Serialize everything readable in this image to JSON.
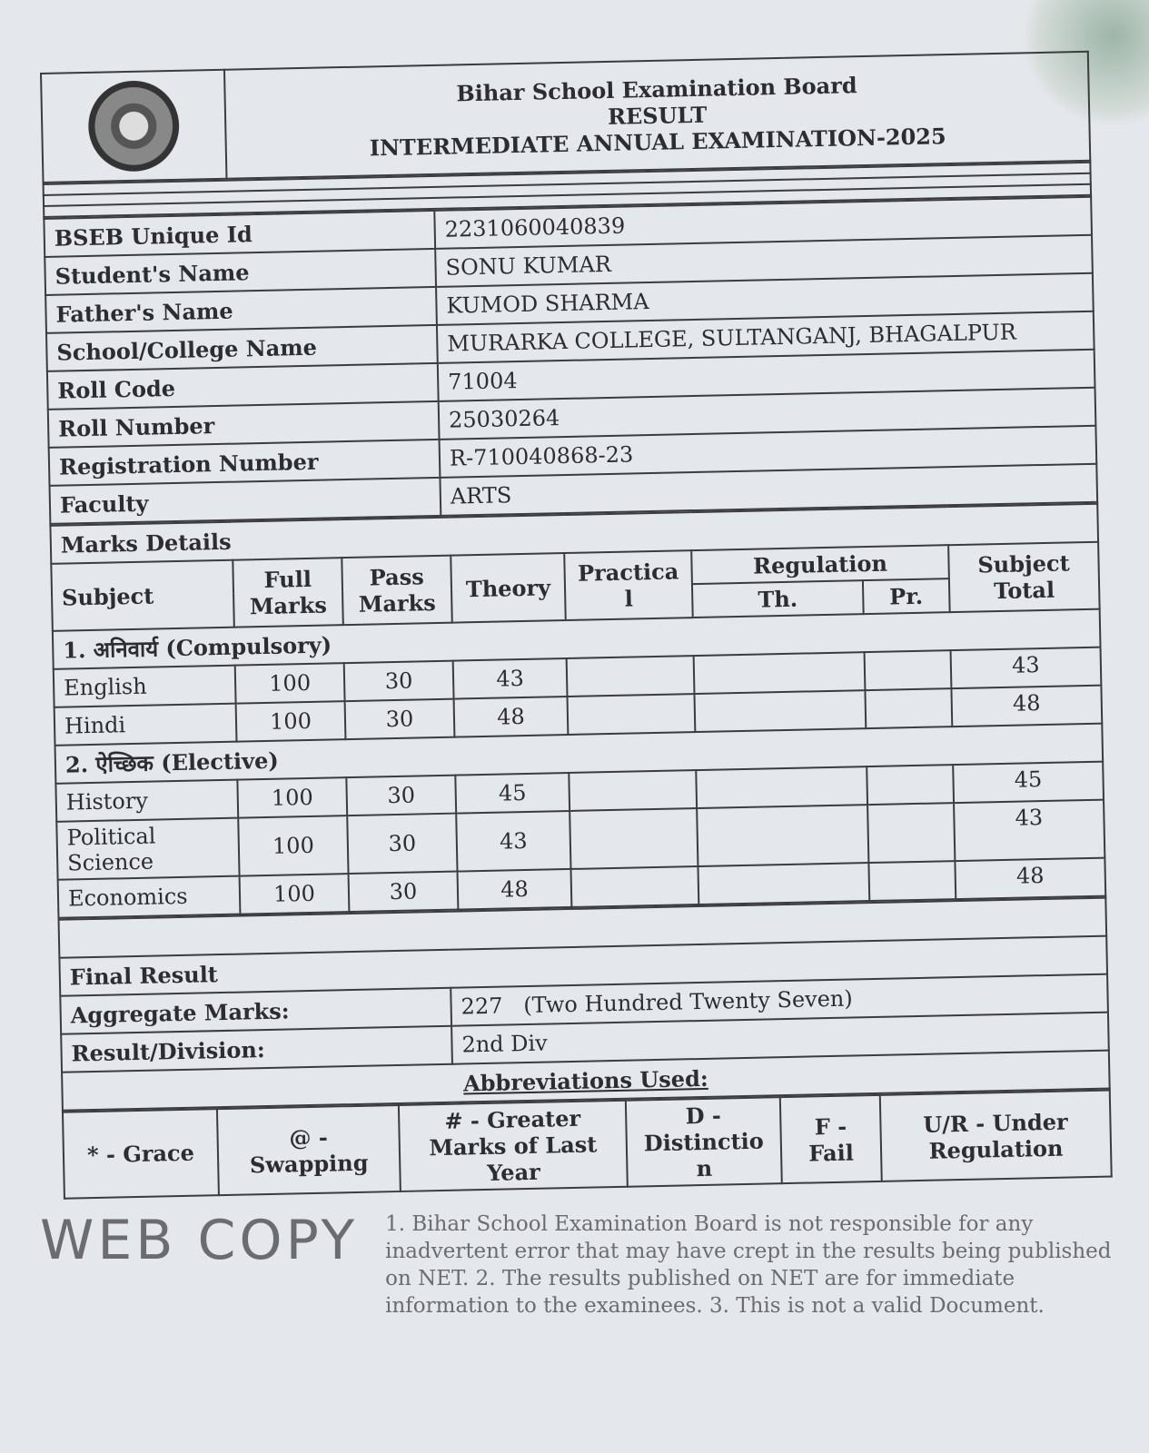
{
  "header": {
    "board": "Bihar School Examination Board",
    "result": "RESULT",
    "exam": "INTERMEDIATE ANNUAL EXAMINATION-2025"
  },
  "details": [
    {
      "label": "BSEB Unique Id",
      "value": "2231060040839"
    },
    {
      "label": "Student's Name",
      "value": "SONU KUMAR"
    },
    {
      "label": "Father's Name",
      "value": "KUMOD SHARMA"
    },
    {
      "label": "School/College Name",
      "value": "MURARKA COLLEGE, SULTANGANJ, BHAGALPUR"
    },
    {
      "label": "Roll Code",
      "value": "71004"
    },
    {
      "label": "Roll Number",
      "value": "25030264"
    },
    {
      "label": "Registration Number",
      "value": "R-710040868-23"
    },
    {
      "label": "Faculty",
      "value": "ARTS"
    }
  ],
  "marks": {
    "title": "Marks Details",
    "headers": {
      "subject": "Subject",
      "full": "Full Marks",
      "pass": "Pass Marks",
      "theory": "Theory",
      "practical": "Practical",
      "regulation": "Regulation",
      "th": "Th.",
      "pr": "Pr.",
      "total": "Subject Total"
    },
    "groups": [
      {
        "name": "1. अनिवार्य (Compulsory)",
        "rows": [
          {
            "subject": "English",
            "full": "100",
            "pass": "30",
            "theory": "43",
            "practical": "",
            "th": "",
            "pr": "",
            "total": "43"
          },
          {
            "subject": "Hindi",
            "full": "100",
            "pass": "30",
            "theory": "48",
            "practical": "",
            "th": "",
            "pr": "",
            "total": "48"
          }
        ]
      },
      {
        "name": "2. ऐच्छिक (Elective)",
        "rows": [
          {
            "subject": "History",
            "full": "100",
            "pass": "30",
            "theory": "45",
            "practical": "",
            "th": "",
            "pr": "",
            "total": "45"
          },
          {
            "subject": "Political Science",
            "full": "100",
            "pass": "30",
            "theory": "43",
            "practical": "",
            "th": "",
            "pr": "",
            "total": "43"
          },
          {
            "subject": "Economics",
            "full": "100",
            "pass": "30",
            "theory": "48",
            "practical": "",
            "th": "",
            "pr": "",
            "total": "48"
          }
        ]
      }
    ]
  },
  "final": {
    "title": "Final Result",
    "aggregate_label": "Aggregate Marks:",
    "aggregate_value": "227",
    "aggregate_words": "(Two Hundred Twenty Seven)",
    "division_label": "Result/Division:",
    "division_value": "2nd Div"
  },
  "abbreviations": {
    "title": "Abbreviations Used:",
    "items": [
      "* - Grace",
      "@ - Swapping",
      "# - Greater Marks of Last Year",
      "D - Distinction",
      "F - Fail",
      "U/R - Under Regulation"
    ]
  },
  "watermark": {
    "big": "WEB COPY",
    "notice": "1. Bihar School Examination Board is not responsible for any inadvertent error that may have crept in the results being published on NET. 2. The results published on NET are for immediate information to the examinees. 3. This is not a valid Document."
  }
}
